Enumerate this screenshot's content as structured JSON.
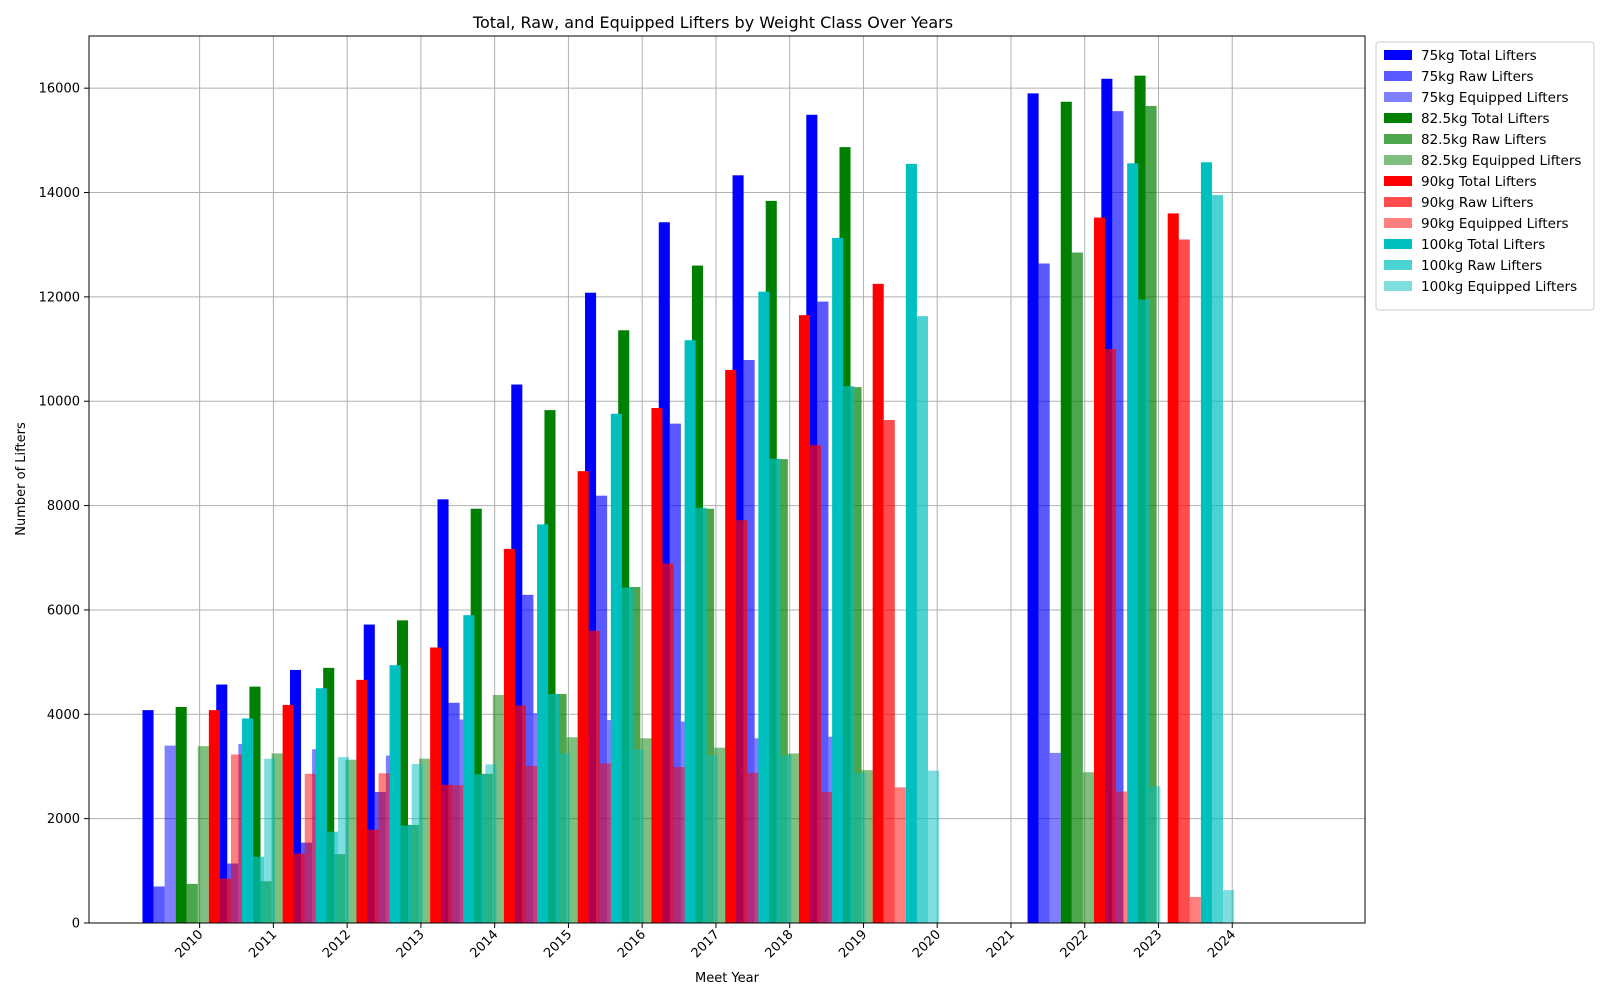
{
  "chart_data": {
    "type": "bar",
    "title": "Total, Raw, and Equipped Lifters by Weight Class Over Years",
    "xlabel": "Meet Year",
    "ylabel": "Number of Lifters",
    "ylim": [
      0,
      17000
    ],
    "yticks": [
      0,
      2000,
      4000,
      6000,
      8000,
      10000,
      12000,
      14000,
      16000
    ],
    "xlim": [
      2008.5,
      2025.8
    ],
    "categories": [
      2010,
      2011,
      2012,
      2013,
      2014,
      2015,
      2016,
      2017,
      2018,
      2019,
      2020,
      2021,
      2022,
      2023,
      2024
    ],
    "grid": true,
    "legend_position": "outside-upper-right",
    "note_offsets": "each series is drawn at its own horizontal offset from the year tick",
    "series": [
      {
        "name": "75kg Total Lifters",
        "color": "#0000ff",
        "opacity": 1.0,
        "offset": -0.7,
        "points": [
          [
            2010,
            4080
          ],
          [
            2011,
            4570
          ],
          [
            2012,
            4850
          ],
          [
            2013,
            5720
          ],
          [
            2014,
            8120
          ],
          [
            2015,
            10320
          ],
          [
            2016,
            12080
          ],
          [
            2017,
            13430
          ],
          [
            2018,
            14330
          ],
          [
            2019,
            15490
          ],
          [
            2022,
            15900
          ],
          [
            2023,
            16180
          ]
        ]
      },
      {
        "name": "75kg Raw Lifters",
        "color": "#0000ff",
        "opacity": 0.65,
        "offset": -0.55,
        "points": [
          [
            2010,
            700
          ],
          [
            2011,
            1140
          ],
          [
            2012,
            1540
          ],
          [
            2013,
            2510
          ],
          [
            2014,
            4220
          ],
          [
            2015,
            6290
          ],
          [
            2016,
            8190
          ],
          [
            2017,
            9570
          ],
          [
            2018,
            10790
          ],
          [
            2019,
            11910
          ],
          [
            2022,
            12640
          ],
          [
            2023,
            15560
          ]
        ]
      },
      {
        "name": "75kg Equipped Lifters",
        "color": "#0000ff",
        "opacity": 0.5,
        "offset": -0.4,
        "points": [
          [
            2010,
            3400
          ],
          [
            2011,
            3430
          ],
          [
            2012,
            3330
          ],
          [
            2013,
            3210
          ],
          [
            2014,
            3900
          ],
          [
            2015,
            4020
          ],
          [
            2016,
            3890
          ],
          [
            2017,
            3860
          ],
          [
            2018,
            3540
          ],
          [
            2019,
            3570
          ],
          [
            2022,
            3260
          ]
        ]
      },
      {
        "name": "82.5kg Total Lifters",
        "color": "#008000",
        "opacity": 1.0,
        "offset": -0.25,
        "points": [
          [
            2010,
            4140
          ],
          [
            2011,
            4530
          ],
          [
            2012,
            4890
          ],
          [
            2013,
            5800
          ],
          [
            2014,
            7940
          ],
          [
            2015,
            9830
          ],
          [
            2016,
            11360
          ],
          [
            2017,
            12600
          ],
          [
            2018,
            13840
          ],
          [
            2019,
            14870
          ],
          [
            2022,
            15740
          ],
          [
            2023,
            16240
          ]
        ]
      },
      {
        "name": "82.5kg Raw Lifters",
        "color": "#008000",
        "opacity": 0.7,
        "offset": -0.1,
        "points": [
          [
            2010,
            750
          ],
          [
            2011,
            800
          ],
          [
            2012,
            1320
          ],
          [
            2013,
            1880
          ],
          [
            2014,
            2860
          ],
          [
            2015,
            4390
          ],
          [
            2016,
            6440
          ],
          [
            2017,
            7940
          ],
          [
            2018,
            8890
          ],
          [
            2019,
            10270
          ],
          [
            2022,
            12850
          ],
          [
            2023,
            15660
          ]
        ]
      },
      {
        "name": "82.5kg Equipped Lifters",
        "color": "#008000",
        "opacity": 0.5,
        "offset": 0.05,
        "points": [
          [
            2010,
            3390
          ],
          [
            2011,
            3250
          ],
          [
            2012,
            3130
          ],
          [
            2013,
            3150
          ],
          [
            2014,
            4370
          ],
          [
            2015,
            3560
          ],
          [
            2016,
            3540
          ],
          [
            2017,
            3360
          ],
          [
            2018,
            3250
          ],
          [
            2019,
            2930
          ],
          [
            2022,
            2890
          ]
        ]
      },
      {
        "name": "90kg Total Lifters",
        "color": "#ff0000",
        "opacity": 1.0,
        "offset": 0.2,
        "points": [
          [
            2010,
            4080
          ],
          [
            2011,
            4180
          ],
          [
            2012,
            4660
          ],
          [
            2013,
            5280
          ],
          [
            2014,
            7170
          ],
          [
            2015,
            8660
          ],
          [
            2016,
            9870
          ],
          [
            2017,
            10600
          ],
          [
            2018,
            11650
          ],
          [
            2019,
            12250
          ],
          [
            2022,
            13520
          ],
          [
            2023,
            13600
          ]
        ]
      },
      {
        "name": "90kg Raw Lifters",
        "color": "#ff0000",
        "opacity": 0.7,
        "offset": 0.35,
        "points": [
          [
            2010,
            850
          ],
          [
            2011,
            1330
          ],
          [
            2012,
            1790
          ],
          [
            2013,
            2650
          ],
          [
            2014,
            4170
          ],
          [
            2015,
            5600
          ],
          [
            2016,
            6890
          ],
          [
            2017,
            7720
          ],
          [
            2018,
            9160
          ],
          [
            2019,
            9640
          ],
          [
            2022,
            11000
          ],
          [
            2023,
            13100
          ]
        ]
      },
      {
        "name": "90kg Equipped Lifters",
        "color": "#ff0000",
        "opacity": 0.5,
        "offset": 0.5,
        "points": [
          [
            2010,
            3230
          ],
          [
            2011,
            2860
          ],
          [
            2012,
            2870
          ],
          [
            2013,
            2640
          ],
          [
            2014,
            3010
          ],
          [
            2015,
            3060
          ],
          [
            2016,
            2990
          ],
          [
            2017,
            2880
          ],
          [
            2018,
            2510
          ],
          [
            2019,
            2600
          ],
          [
            2022,
            2520
          ],
          [
            2023,
            500
          ]
        ]
      },
      {
        "name": "100kg Total Lifters",
        "color": "#00bfbf",
        "opacity": 1.0,
        "offset": 0.65,
        "points": [
          [
            2010,
            3920
          ],
          [
            2011,
            4500
          ],
          [
            2012,
            4940
          ],
          [
            2013,
            5900
          ],
          [
            2014,
            7640
          ],
          [
            2015,
            9760
          ],
          [
            2016,
            11170
          ],
          [
            2017,
            12100
          ],
          [
            2018,
            13130
          ],
          [
            2019,
            14550
          ],
          [
            2022,
            14560
          ],
          [
            2023,
            14580
          ]
        ]
      },
      {
        "name": "100kg Raw Lifters",
        "color": "#00bfbf",
        "opacity": 0.7,
        "offset": 0.8,
        "points": [
          [
            2010,
            1270
          ],
          [
            2011,
            1750
          ],
          [
            2012,
            1870
          ],
          [
            2013,
            2850
          ],
          [
            2014,
            4390
          ],
          [
            2015,
            6430
          ],
          [
            2016,
            7960
          ],
          [
            2017,
            8900
          ],
          [
            2018,
            10290
          ],
          [
            2019,
            11630
          ],
          [
            2022,
            11950
          ],
          [
            2023,
            13950
          ]
        ]
      },
      {
        "name": "100kg Equipped Lifters",
        "color": "#00bfbf",
        "opacity": 0.5,
        "offset": 0.95,
        "points": [
          [
            2010,
            3150
          ],
          [
            2011,
            3180
          ],
          [
            2012,
            3050
          ],
          [
            2013,
            3040
          ],
          [
            2014,
            3250
          ],
          [
            2015,
            3330
          ],
          [
            2016,
            3210
          ],
          [
            2017,
            3210
          ],
          [
            2018,
            2880
          ],
          [
            2019,
            2920
          ],
          [
            2022,
            2620
          ],
          [
            2023,
            630
          ]
        ]
      }
    ]
  }
}
